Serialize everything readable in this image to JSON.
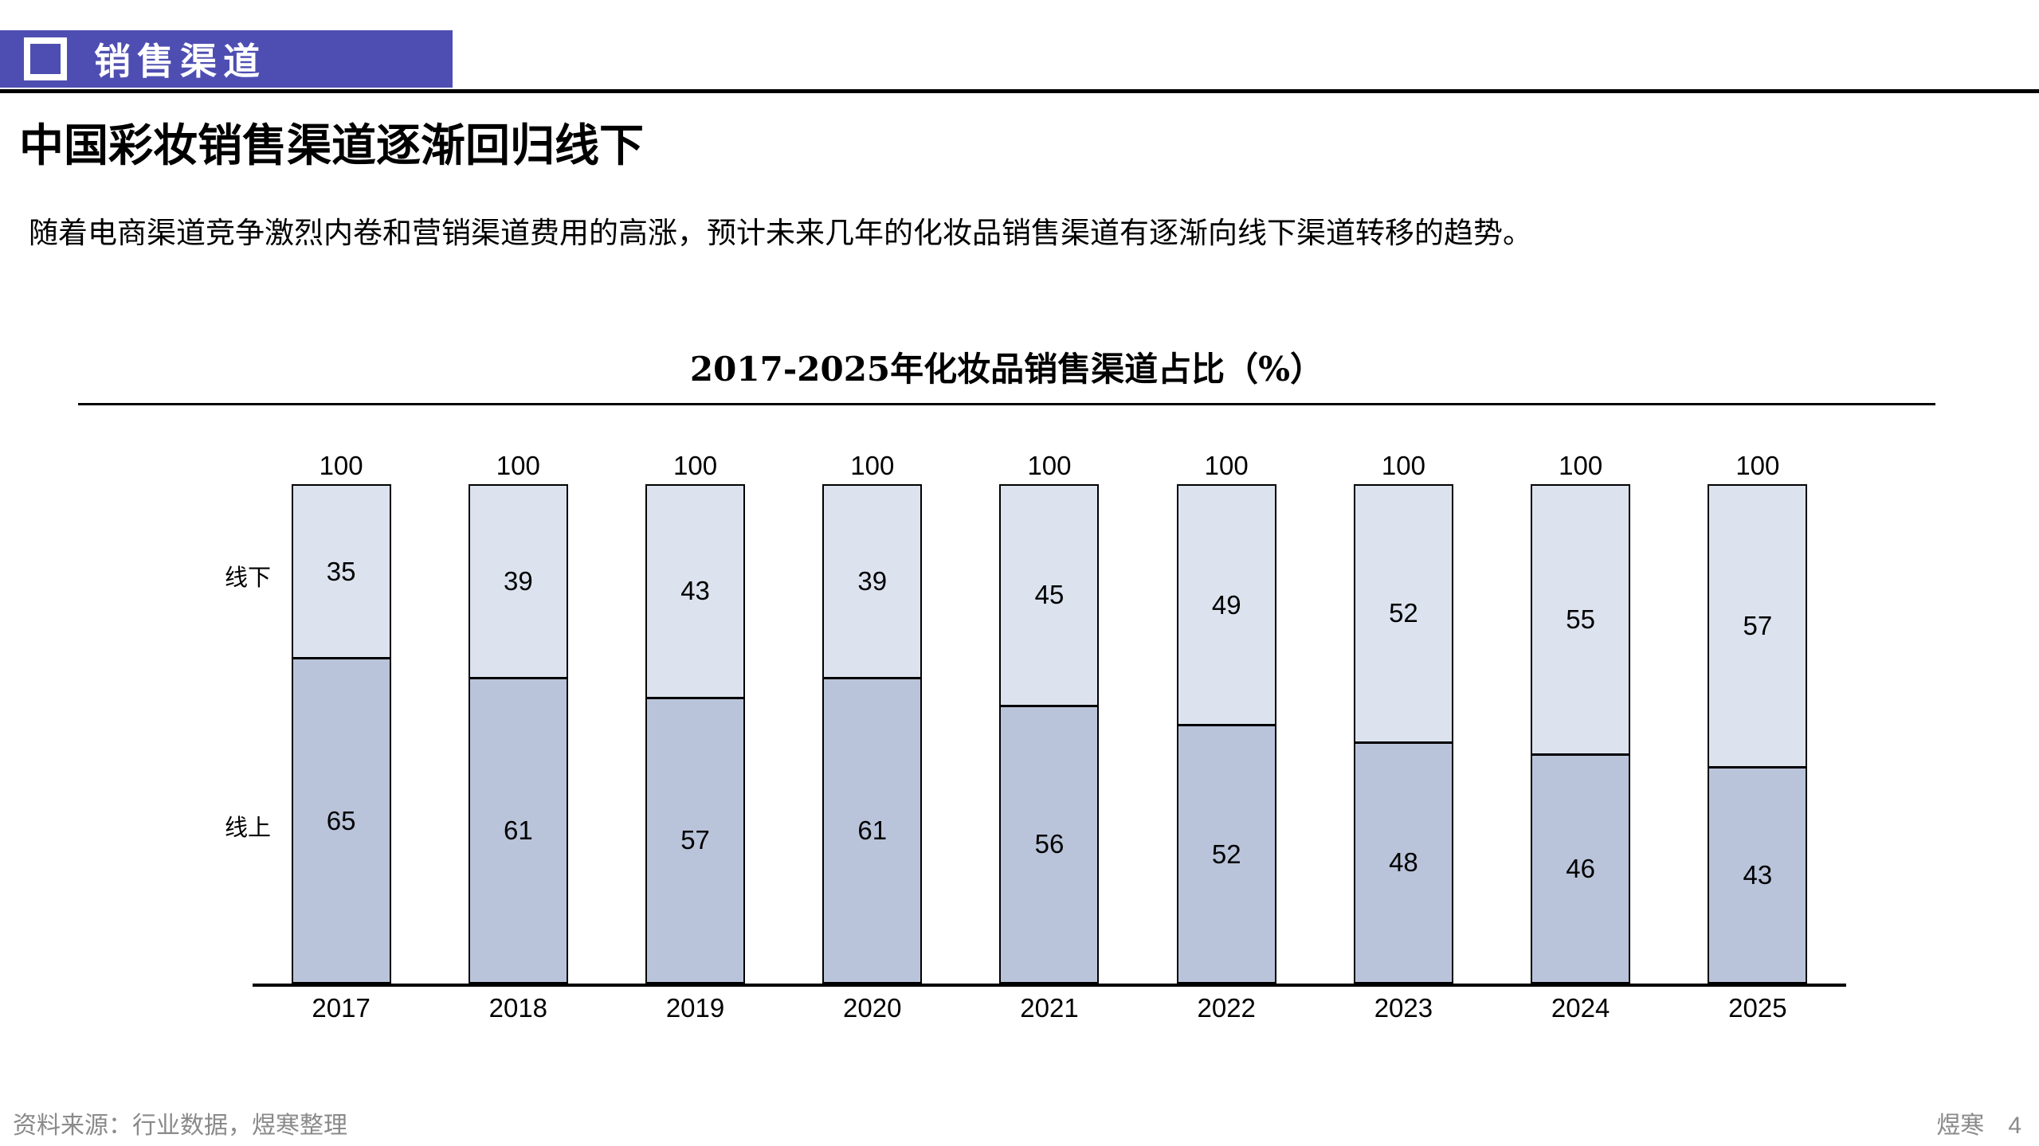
{
  "header": {
    "banner_label": "销售渠道"
  },
  "page": {
    "title": "中国彩妆销售渠道逐渐回归线下",
    "subtitle": "随着电商渠道竞争激烈内卷和营销渠道费用的高涨，预计未来几年的化妆品销售渠道有逐渐向线下渠道转移的趋势。"
  },
  "chart_data": {
    "type": "bar",
    "stacked": true,
    "title": "2017-2025年化妆品销售渠道占比（%）",
    "categories": [
      "2017",
      "2018",
      "2019",
      "2020",
      "2021",
      "2022",
      "2023",
      "2024",
      "2025"
    ],
    "series": [
      {
        "name": "线下",
        "position": "top",
        "color": "#dce3ef",
        "values": [
          35,
          39,
          43,
          39,
          45,
          49,
          52,
          55,
          57
        ]
      },
      {
        "name": "线上",
        "position": "bottom",
        "color": "#b9c4da",
        "values": [
          65,
          61,
          57,
          61,
          56,
          52,
          48,
          46,
          43
        ]
      }
    ],
    "totals": [
      "100",
      "100",
      "100",
      "100",
      "100",
      "100",
      "100",
      "100",
      "100"
    ],
    "ylim": [
      0,
      100
    ],
    "grid": false,
    "legend_position": "left-of-first-bar",
    "value_labels": "inside-center"
  },
  "colors": {
    "banner": "#4e4eb2",
    "offline_fill": "#dce3ef",
    "online_fill": "#b9c4da",
    "footer_text": "#8a8a8a"
  },
  "footer": {
    "source": "资料来源：行业数据，煜寒整理",
    "brand": "煜寒",
    "page_number": "4"
  }
}
